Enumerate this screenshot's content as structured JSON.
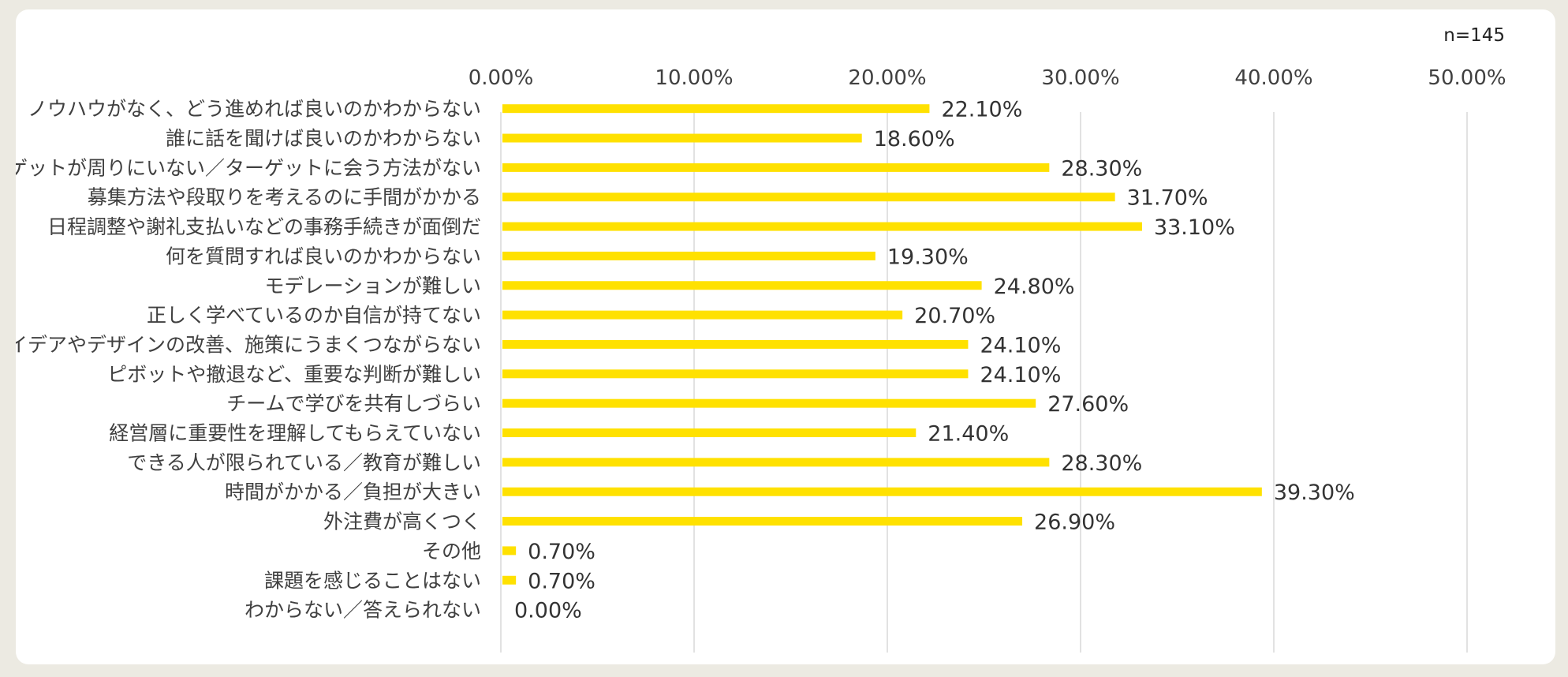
{
  "sample_size": "n=145",
  "colors": {
    "bar": "#ffe100",
    "grid": "#d9d9d9",
    "text": "#404040"
  },
  "chart_data": {
    "type": "bar",
    "orientation": "horizontal",
    "categories": [
      "ノウハウがなく、どう進めれば良いのかわからない",
      "誰に話を聞けば良いのかわからない",
      "ターゲットが周りにいない／ターゲットに会う方法がない",
      "募集方法や段取りを考えるのに手間がかかる",
      "日程調整や謝礼支払いなどの事務手続きが面倒だ",
      "何を質問すれば良いのかわからない",
      "モデレーションが難しい",
      "正しく学べているのか自信が持てない",
      "アイデアやデザインの改善、施策にうまくつながらない",
      "ピボットや撤退など、重要な判断が難しい",
      "チームで学びを共有しづらい",
      "経営層に重要性を理解してもらえていない",
      "できる人が限られている／教育が難しい",
      "時間がかかる／負担が大きい",
      "外注費が高くつく",
      "その他",
      "課題を感じることはない",
      "わからない／答えられない"
    ],
    "values": [
      22.1,
      18.6,
      28.3,
      31.7,
      33.1,
      19.3,
      24.8,
      20.7,
      24.1,
      24.1,
      27.6,
      21.4,
      28.3,
      39.3,
      26.9,
      0.7,
      0.7,
      0.0
    ],
    "data_labels": [
      "22.10%",
      "18.60%",
      "28.30%",
      "31.70%",
      "33.10%",
      "19.30%",
      "24.80%",
      "20.70%",
      "24.10%",
      "24.10%",
      "27.60%",
      "21.40%",
      "28.30%",
      "39.30%",
      "26.90%",
      "0.70%",
      "0.70%",
      "0.00%"
    ],
    "xlim": [
      0,
      50
    ],
    "ticks": [
      0,
      10,
      20,
      30,
      40,
      50
    ],
    "tick_labels": [
      "0.00%",
      "10.00%",
      "20.00%",
      "30.00%",
      "40.00%",
      "50.00%"
    ],
    "axis_position": "top",
    "grid": true,
    "legend": "none"
  }
}
